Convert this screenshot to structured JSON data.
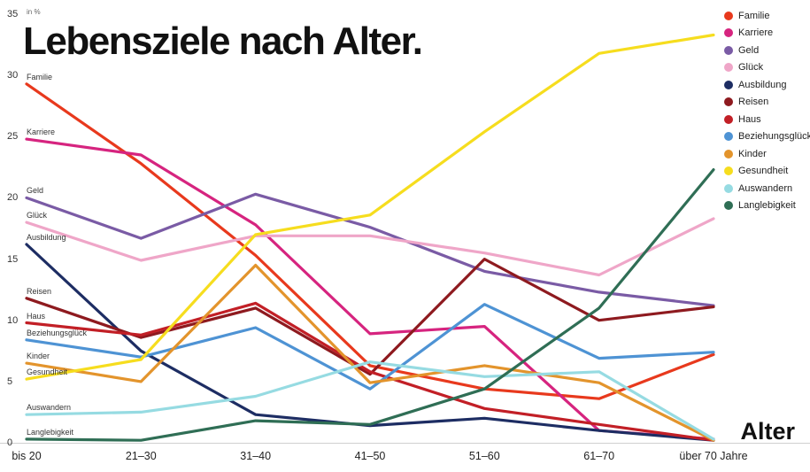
{
  "chart_data": {
    "type": "line",
    "title": "Lebensziele nach Alter.",
    "unit": "in %",
    "xlabel": "Alter",
    "categories": [
      "bis 20",
      "21–30",
      "31–40",
      "41–50",
      "51–60",
      "61–70",
      "über 70 Jahre"
    ],
    "ylim": [
      0,
      35
    ],
    "yticks": [
      0,
      5,
      10,
      15,
      20,
      25,
      30,
      35
    ],
    "grid": false,
    "legend_position": "top-right",
    "series": [
      {
        "name": "Familie",
        "color": "#e8391d",
        "values": [
          29.3,
          22.8,
          15.3,
          6.3,
          4.4,
          3.6,
          7.2
        ]
      },
      {
        "name": "Karriere",
        "color": "#d6247f",
        "values": [
          24.8,
          23.5,
          17.8,
          8.9,
          9.5,
          1.0,
          0.3
        ]
      },
      {
        "name": "Geld",
        "color": "#7a5ba5",
        "values": [
          20.0,
          16.7,
          20.3,
          17.6,
          14.0,
          12.3,
          11.2
        ]
      },
      {
        "name": "Glück",
        "color": "#efa6c8",
        "values": [
          18.0,
          14.9,
          16.9,
          16.9,
          15.5,
          13.7,
          18.3
        ]
      },
      {
        "name": "Ausbildung",
        "color": "#1d2d63",
        "values": [
          16.2,
          7.5,
          2.3,
          1.4,
          2.0,
          1.0,
          0.2
        ]
      },
      {
        "name": "Reisen",
        "color": "#8e1a1f",
        "values": [
          11.8,
          8.6,
          11.0,
          5.6,
          15.0,
          10.0,
          11.1
        ]
      },
      {
        "name": "Haus",
        "color": "#c21f26",
        "values": [
          9.8,
          8.8,
          11.4,
          5.8,
          2.8,
          1.5,
          0.2
        ]
      },
      {
        "name": "Beziehungsglück",
        "color": "#4e93d4",
        "values": [
          8.4,
          7.0,
          9.4,
          4.4,
          11.3,
          6.9,
          7.4
        ]
      },
      {
        "name": "Kinder",
        "color": "#e3942c",
        "values": [
          6.5,
          5.0,
          14.5,
          4.9,
          6.3,
          4.9,
          0.2
        ]
      },
      {
        "name": "Gesundheit",
        "color": "#f6dd1e",
        "values": [
          5.2,
          6.8,
          17.0,
          18.6,
          25.4,
          31.8,
          33.3
        ]
      },
      {
        "name": "Auswandern",
        "color": "#96dbe2",
        "values": [
          2.3,
          2.5,
          3.8,
          6.6,
          5.4,
          5.8,
          0.3
        ]
      },
      {
        "name": "Langlebigkeit",
        "color": "#2f6e55",
        "values": [
          0.3,
          0.2,
          1.8,
          1.5,
          4.4,
          11.0,
          22.3
        ]
      }
    ]
  }
}
